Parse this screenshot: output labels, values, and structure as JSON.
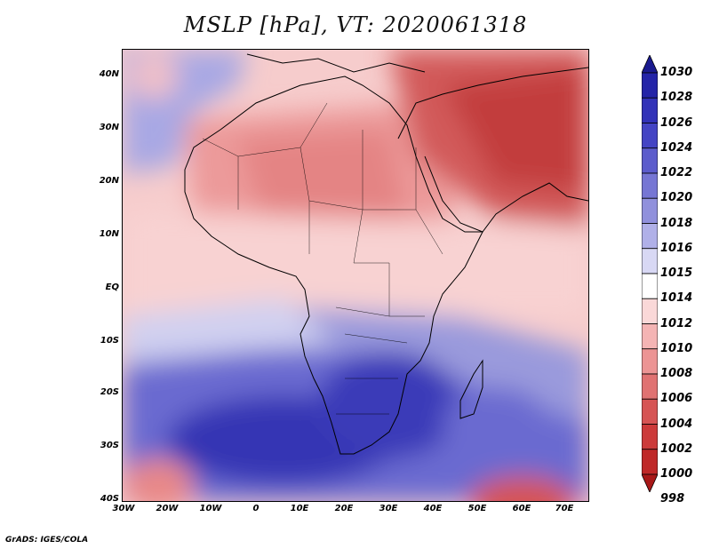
{
  "title": "MSLP [hPa], VT: 2020061318",
  "lat_labels": [
    "40N",
    "30N",
    "20N",
    "10N",
    "EQ",
    "10S",
    "20S",
    "30S",
    "40S"
  ],
  "lon_labels": [
    "30W",
    "20W",
    "10W",
    "0",
    "10E",
    "20E",
    "30E",
    "40E",
    "50E",
    "60E",
    "70E"
  ],
  "colorbar": {
    "levels": [
      "1030",
      "1028",
      "1026",
      "1024",
      "1022",
      "1020",
      "1018",
      "1016",
      "1015",
      "1014",
      "1012",
      "1010",
      "1008",
      "1006",
      "1004",
      "1002",
      "1000",
      "998"
    ],
    "colors": [
      "#1a1a8f",
      "#2424a8",
      "#3232b8",
      "#4444c4",
      "#5c5ccc",
      "#7676d4",
      "#9090dc",
      "#b0b0e8",
      "#d8d8f4",
      "#ffffff",
      "#fad8d8",
      "#f4b4b4",
      "#ec9494",
      "#e07272",
      "#d65454",
      "#cc3a3a",
      "#bf2828",
      "#a81818"
    ]
  },
  "credit": "GrADS: IGES/COLA"
}
